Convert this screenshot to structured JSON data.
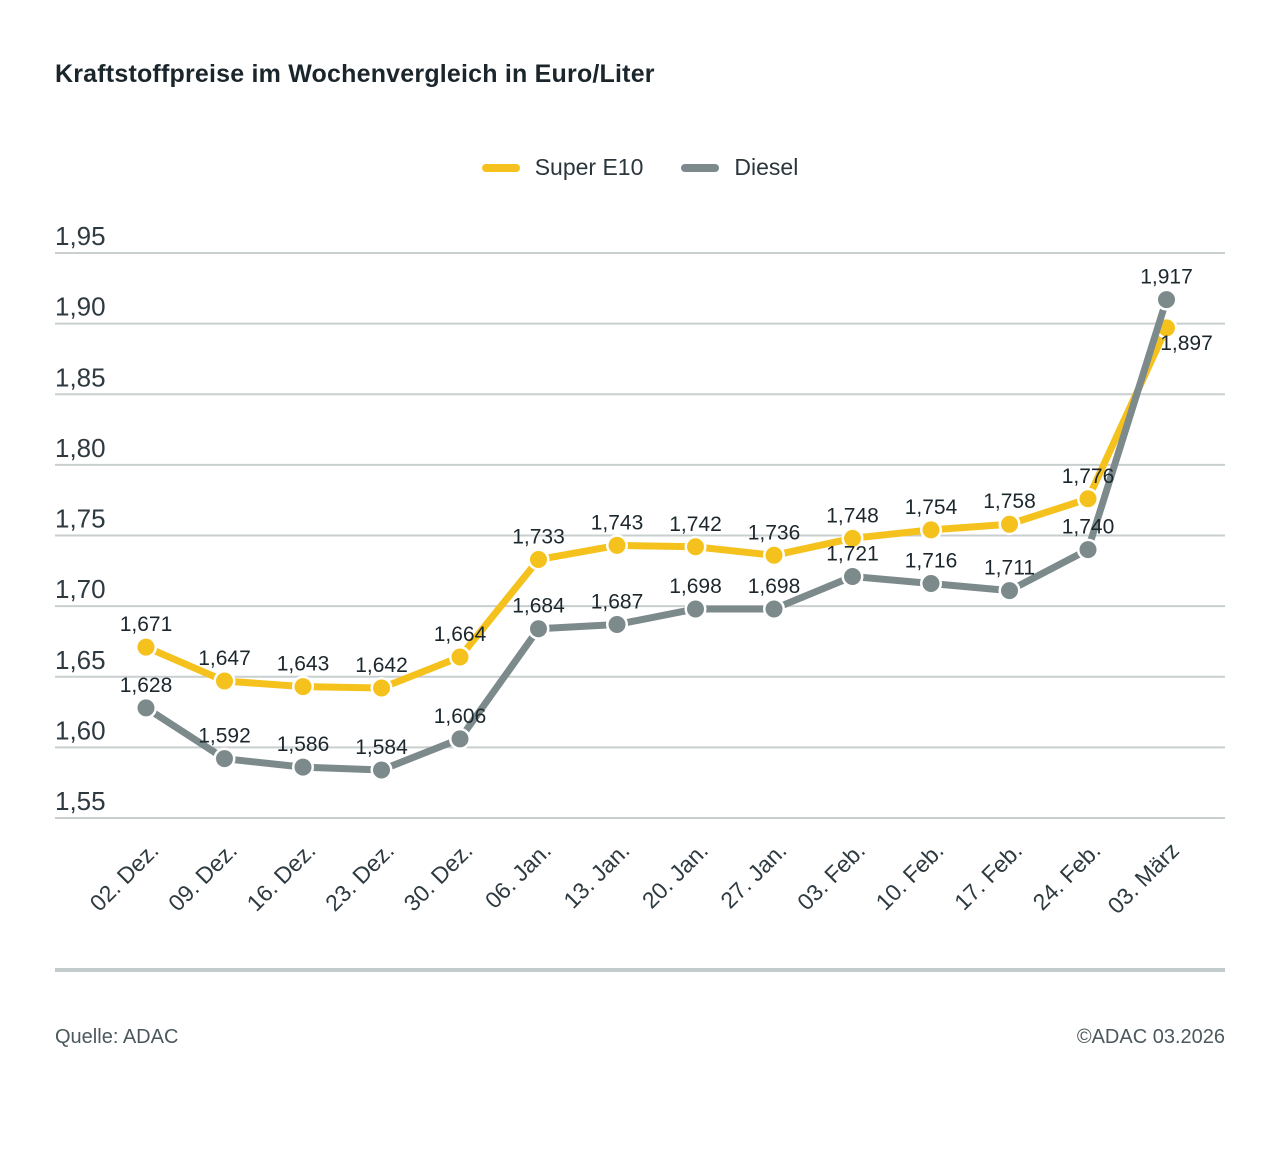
{
  "title": "Kraftstoffpreise im Wochenvergleich in Euro/Liter",
  "legend": [
    {
      "label": "Super E10",
      "color": "#f5c21d"
    },
    {
      "label": "Diesel",
      "color": "#7c8a8c"
    }
  ],
  "footer": {
    "source": "Quelle: ADAC",
    "copyright": "©ADAC 03.2026"
  },
  "chart_data": {
    "type": "line",
    "title": "Kraftstoffpreise im Wochenvergleich in Euro/Liter",
    "categories": [
      "02. Dez.",
      "09. Dez.",
      "16. Dez.",
      "23. Dez.",
      "30. Dez.",
      "06. Jan.",
      "13. Jan.",
      "20. Jan.",
      "27. Jan.",
      "03. Feb.",
      "10. Feb.",
      "17. Feb.",
      "24. Feb.",
      "03. März"
    ],
    "series": [
      {
        "name": "Super E10",
        "color": "#f5c21d",
        "values": [
          1.671,
          1.647,
          1.643,
          1.642,
          1.664,
          1.733,
          1.743,
          1.742,
          1.736,
          1.748,
          1.754,
          1.758,
          1.776,
          1.897
        ],
        "labels": [
          "1,671",
          "1,647",
          "1,643",
          "1,642",
          "1,664",
          "1,733",
          "1,743",
          "1,742",
          "1,736",
          "1,748",
          "1,754",
          "1,758",
          "1,776",
          "1,897"
        ]
      },
      {
        "name": "Diesel",
        "color": "#7c8a8c",
        "values": [
          1.628,
          1.592,
          1.586,
          1.584,
          1.606,
          1.684,
          1.687,
          1.698,
          1.698,
          1.721,
          1.716,
          1.711,
          1.74,
          1.917
        ],
        "labels": [
          "1,628",
          "1,592",
          "1,586",
          "1,584",
          "1,606",
          "1,684",
          "1,687",
          "1,698",
          "1,698",
          "1,721",
          "1,716",
          "1,711",
          "1,740",
          "1,917"
        ]
      }
    ],
    "ylim": [
      1.55,
      1.95
    ],
    "ytick_step": 0.05,
    "yticks": [
      {
        "value": 1.95,
        "label": "1,95"
      },
      {
        "value": 1.9,
        "label": "1,90"
      },
      {
        "value": 1.85,
        "label": "1,85"
      },
      {
        "value": 1.8,
        "label": "1,80"
      },
      {
        "value": 1.75,
        "label": "1,75"
      },
      {
        "value": 1.7,
        "label": "1,70"
      },
      {
        "value": 1.65,
        "label": "1,65"
      },
      {
        "value": 1.6,
        "label": "1,60"
      },
      {
        "value": 1.55,
        "label": "1,55"
      }
    ],
    "grid": "horizontal",
    "grid_color": "#c9cfcf",
    "axis_text_color": "#2e3a40",
    "data_label_color": "#1c272d",
    "legend_position": "top-center",
    "label_overrides": [
      {
        "series": 0,
        "point": 13,
        "dx": 20,
        "dy": 22
      }
    ]
  }
}
